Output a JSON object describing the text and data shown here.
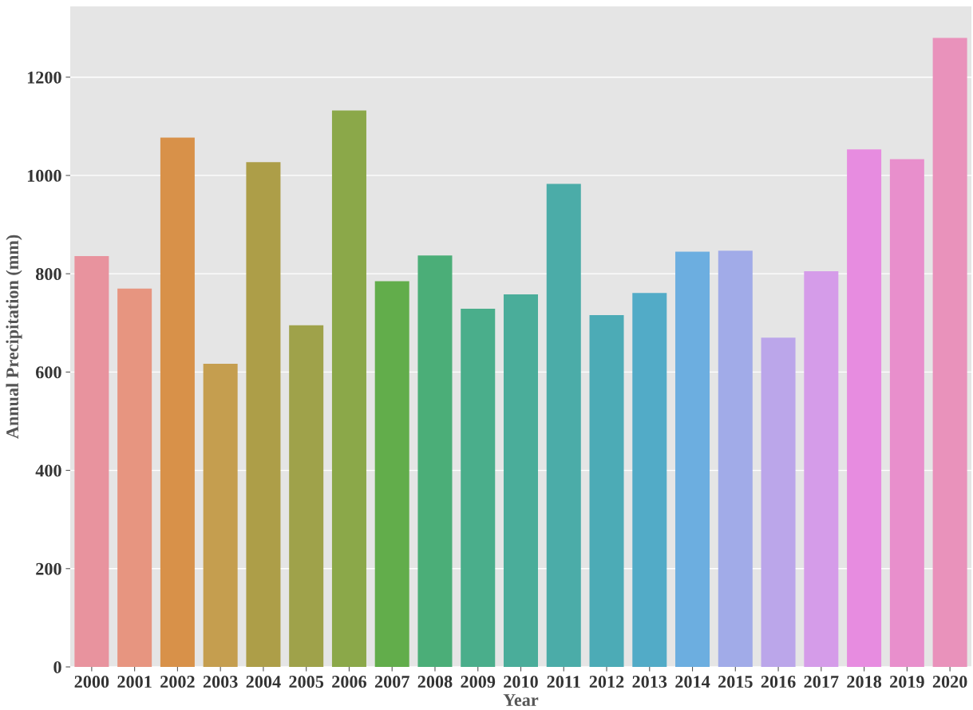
{
  "chart_data": {
    "type": "bar",
    "xlabel": "Year",
    "ylabel": "Annual Precipitation (mm)",
    "categories": [
      "2000",
      "2001",
      "2002",
      "2003",
      "2004",
      "2005",
      "2006",
      "2007",
      "2008",
      "2009",
      "2010",
      "2011",
      "2012",
      "2013",
      "2014",
      "2015",
      "2016",
      "2017",
      "2018",
      "2019",
      "2020"
    ],
    "values": [
      836,
      770,
      1077,
      617,
      1027,
      695,
      1132,
      785,
      837,
      729,
      758,
      983,
      716,
      761,
      845,
      847,
      670,
      805,
      1053,
      1033,
      1280
    ],
    "colors": [
      "#e8939e",
      "#e79580",
      "#d89149",
      "#c59e4f",
      "#ad9e48",
      "#9fa24a",
      "#8ba849",
      "#62ad4b",
      "#4bae78",
      "#4aae8b",
      "#4aad9a",
      "#4baca8",
      "#4cabb6",
      "#52abc7",
      "#6caee0",
      "#a1abe8",
      "#bba6ea",
      "#d59ce9",
      "#e78ce0",
      "#e88fcc",
      "#e992bb"
    ],
    "ylim": [
      0,
      1344
    ],
    "yticks": [
      0,
      200,
      400,
      600,
      800,
      1000,
      1200
    ],
    "grid": "y"
  }
}
